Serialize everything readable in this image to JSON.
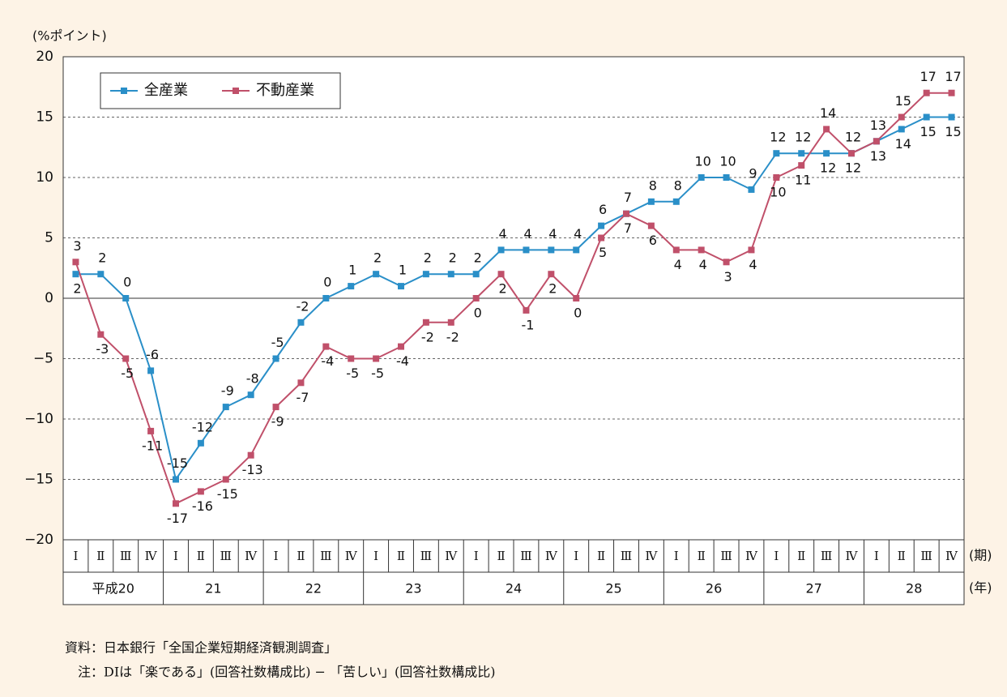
{
  "chart_data": {
    "type": "line",
    "unit_label": "(%ポイント)",
    "categories": [
      "Ⅰ",
      "Ⅱ",
      "Ⅲ",
      "Ⅳ",
      "Ⅰ",
      "Ⅱ",
      "Ⅲ",
      "Ⅳ",
      "Ⅰ",
      "Ⅱ",
      "Ⅲ",
      "Ⅳ",
      "Ⅰ",
      "Ⅱ",
      "Ⅲ",
      "Ⅳ",
      "Ⅰ",
      "Ⅱ",
      "Ⅲ",
      "Ⅳ",
      "Ⅰ",
      "Ⅱ",
      "Ⅲ",
      "Ⅳ",
      "Ⅰ",
      "Ⅱ",
      "Ⅲ",
      "Ⅳ",
      "Ⅰ",
      "Ⅱ",
      "Ⅲ",
      "Ⅳ",
      "Ⅰ",
      "Ⅱ",
      "Ⅲ",
      "Ⅳ"
    ],
    "period_unit": "(期)",
    "years": [
      "平成20",
      "21",
      "22",
      "23",
      "24",
      "25",
      "26",
      "27",
      "28"
    ],
    "year_unit": "(年)",
    "series": [
      {
        "name": "全産業",
        "color": "#2a8fc8",
        "values": [
          2,
          2,
          0,
          -6,
          -15,
          -12,
          -9,
          -8,
          -5,
          -2,
          0,
          1,
          2,
          1,
          2,
          2,
          2,
          4,
          4,
          4,
          4,
          6,
          7,
          8,
          8,
          10,
          10,
          9,
          12,
          12,
          12,
          12,
          13,
          14,
          15,
          15
        ]
      },
      {
        "name": "不動産業",
        "color": "#c0506a",
        "values": [
          3,
          -3,
          -5,
          -11,
          -17,
          -16,
          -15,
          -13,
          -9,
          -7,
          -4,
          -5,
          -5,
          -4,
          -2,
          -2,
          0,
          2,
          -1,
          2,
          0,
          5,
          7,
          6,
          4,
          4,
          3,
          4,
          10,
          11,
          14,
          12,
          13,
          15,
          17,
          17
        ]
      }
    ],
    "ylim": [
      -20,
      20
    ],
    "yticks": [
      {
        "value": -20,
        "label": "−20"
      },
      {
        "value": -15,
        "label": "−15"
      },
      {
        "value": -10,
        "label": "−10"
      },
      {
        "value": -5,
        "label": "−5"
      },
      0,
      5,
      10,
      15,
      20
    ],
    "grid": true,
    "legend": "upper left",
    "source": "資料：日本銀行「全国企業短期経済観測調査」",
    "note": "注：DIは「楽である」(回答社数構成比) − 「苦しい」(回答社数構成比)"
  }
}
